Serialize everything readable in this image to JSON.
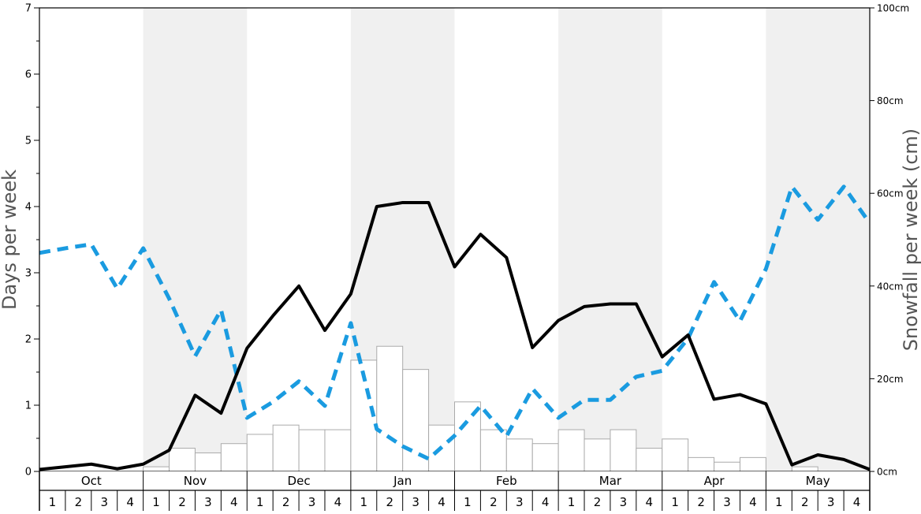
{
  "chart_data": {
    "type": "bar+line",
    "left_axis": {
      "label": "Days per week",
      "ylim": [
        0,
        7
      ],
      "ticks": [
        "0",
        "1",
        "2",
        "3",
        "4",
        "5",
        "6",
        "7"
      ]
    },
    "right_axis": {
      "label": "Snowfall per week (cm)",
      "ylim": [
        0,
        100
      ],
      "ticks": [
        "0cm",
        "20cm",
        "40cm",
        "60cm",
        "80cm",
        "100cm"
      ]
    },
    "months": [
      "Oct",
      "Nov",
      "Dec",
      "Jan",
      "Feb",
      "Mar",
      "Apr",
      "May"
    ],
    "weeks": [
      "1",
      "2",
      "3",
      "4"
    ],
    "shaded_months": [
      false,
      true,
      false,
      true,
      false,
      true,
      false,
      true
    ],
    "grid": false,
    "colors": {
      "bars_fill": "#ffffff",
      "bars_stroke": "#aaaaaa",
      "black_line": "#000000",
      "blue_line": "#1a9be0",
      "band_shade": "#f0f0f0"
    },
    "snowfall_bars_cm": [
      0,
      0,
      0,
      0,
      1,
      5,
      4,
      6,
      8,
      10,
      9,
      9,
      24,
      27,
      22,
      10,
      15,
      9,
      7,
      6,
      9,
      7,
      9,
      5,
      7,
      3,
      2,
      3,
      0,
      1,
      0,
      0
    ],
    "black_line_days": [
      0.03,
      0.07,
      0.11,
      0.04,
      0.11,
      0.32,
      1.15,
      0.88,
      1.86,
      2.35,
      2.8,
      2.13,
      2.68,
      4.0,
      4.06,
      4.06,
      3.09,
      3.58,
      3.23,
      1.87,
      2.28,
      2.49,
      2.53,
      2.53,
      1.73,
      2.06,
      1.09,
      1.16,
      1.02,
      0.1,
      0.25,
      0.18,
      0.03
    ],
    "blue_line_days": [
      3.3,
      3.37,
      3.43,
      2.76,
      3.37,
      2.61,
      1.74,
      2.44,
      0.81,
      1.05,
      1.36,
      0.99,
      2.24,
      0.64,
      0.38,
      0.19,
      0.54,
      0.99,
      0.53,
      1.25,
      0.81,
      1.08,
      1.08,
      1.43,
      1.52,
      2.01,
      2.86,
      2.27,
      3.06,
      4.3,
      3.8,
      4.3,
      3.75
    ]
  }
}
